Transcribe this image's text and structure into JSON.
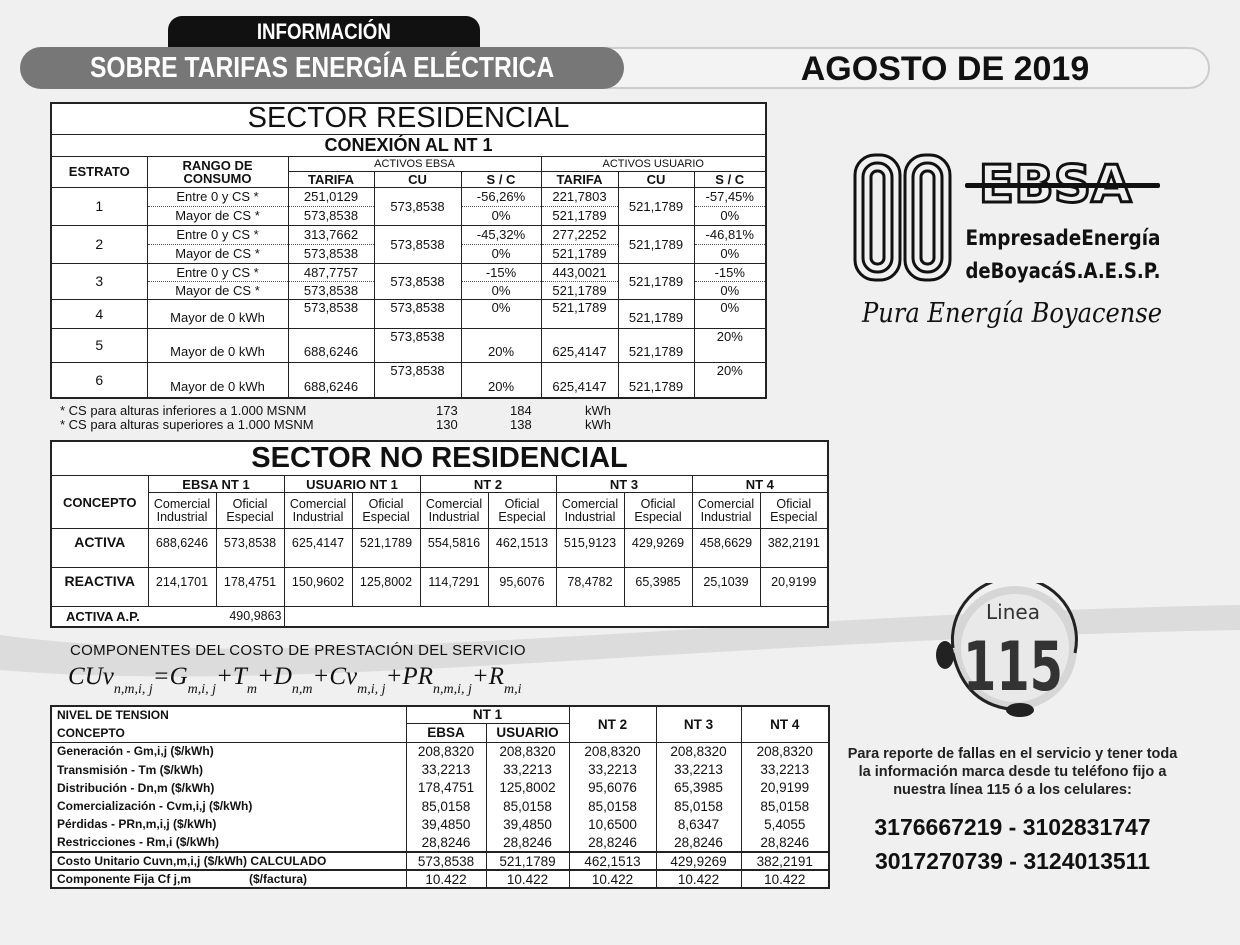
{
  "header": {
    "tab": "INFORMACIÓN",
    "title": "SOBRE TARIFAS ENERGÍA ELÉCTRICA",
    "date": "AGOSTO DE 2019"
  },
  "residencial": {
    "title": "SECTOR RESIDENCIAL",
    "subtitle": "CONEXIÓN AL  NT  1",
    "col_estrato": "ESTRATO",
    "col_rango": "RANGO DE CONSUMO",
    "group_ebsa": "ACTIVOS EBSA",
    "group_usuario": "ACTIVOS USUARIO",
    "sub_headers": [
      "TARIFA",
      "CU",
      "S / C",
      "TARIFA",
      "CU",
      "S / C"
    ],
    "rows": [
      {
        "estrato": "1",
        "lines": [
          [
            "Entre 0  y  CS *",
            "251,0129",
            "-56,26%",
            "221,7803",
            "-57,45%"
          ],
          [
            "Mayor de  CS *",
            "573,8538",
            "0%",
            "521,1789",
            "0%"
          ]
        ],
        "cu_ebsa": "573,8538",
        "cu_usuario": "521,1789"
      },
      {
        "estrato": "2",
        "lines": [
          [
            "Entre 0  y  CS *",
            "313,7662",
            "-45,32%",
            "277,2252",
            "-46,81%"
          ],
          [
            "Mayor de  CS *",
            "573,8538",
            "0%",
            "521,1789",
            "0%"
          ]
        ],
        "cu_ebsa": "573,8538",
        "cu_usuario": "521,1789"
      },
      {
        "estrato": "3",
        "lines": [
          [
            "Entre 0  y  CS *",
            "487,7757",
            "-15%",
            "443,0021",
            "-15%"
          ],
          [
            "Mayor de  CS *",
            "573,8538",
            "0%",
            "521,1789",
            "0%"
          ]
        ],
        "cu_ebsa": "573,8538",
        "cu_usuario": "521,1789"
      },
      {
        "estrato": "4",
        "lines": [
          [
            "Mayor de 0 kWh",
            "573,8538",
            "0%",
            "521,1789",
            "0%"
          ]
        ],
        "cu_ebsa": "573,8538",
        "cu_usuario": "521,1789"
      },
      {
        "estrato": "5",
        "lines": [
          [
            "Mayor de 0 kWh",
            "688,6246",
            "20%",
            "625,4147",
            "20%"
          ]
        ],
        "cu_ebsa": "573,8538",
        "cu_usuario": "521,1789"
      },
      {
        "estrato": "6",
        "lines": [
          [
            "Mayor de 0 kWh",
            "688,6246",
            "20%",
            "625,4147",
            "20%"
          ]
        ],
        "cu_ebsa": "573,8538",
        "cu_usuario": "521,1789"
      }
    ],
    "notes": [
      {
        "text": "* CS para alturas inferiores  a 1.000 MSNM",
        "v1": "173",
        "v2": "184",
        "unit": "kWh"
      },
      {
        "text": "* CS para alturas superiores a 1.000 MSNM",
        "v1": "130",
        "v2": "138",
        "unit": "kWh"
      }
    ]
  },
  "no_residencial": {
    "title": "SECTOR NO RESIDENCIAL",
    "col_concepto": "CONCEPTO",
    "groups": [
      "EBSA NT 1",
      "USUARIO NT 1",
      "NT  2",
      "NT  3",
      "NT  4"
    ],
    "sub": [
      "Comercial Industrial",
      "Oficial Especial"
    ],
    "rows": [
      {
        "label": "ACTIVA",
        "values": [
          "688,6246",
          "573,8538",
          "625,4147",
          "521,1789",
          "554,5816",
          "462,1513",
          "515,9123",
          "429,9269",
          "458,6629",
          "382,2191"
        ]
      },
      {
        "label": "REACTIVA",
        "values": [
          "214,1701",
          "178,4751",
          "150,9602",
          "125,8002",
          "114,7291",
          "95,6076",
          "78,4782",
          "65,3985",
          "25,1039",
          "20,9199"
        ]
      }
    ],
    "ap_label": "ACTIVA A.P.",
    "ap_value": "490,9863"
  },
  "componentes": {
    "title": "COMPONENTES DEL COSTO DE PRESTACIÓN DEL SERVICIO",
    "formula": {
      "lhs": "CUv",
      "lhs_sub": "n,m,i, j",
      "terms": [
        [
          "=G",
          "m,i, j"
        ],
        [
          "+T",
          "m"
        ],
        [
          "+D",
          "n,m"
        ],
        [
          "+Cv",
          "m,i, j"
        ],
        [
          "+PR",
          "n,m,i, j"
        ],
        [
          "+R",
          "m,i"
        ]
      ]
    },
    "h_nivel": "NIVEL DE TENSION",
    "h_concepto": "CONCEPTO",
    "h_nt1": "NT 1",
    "h_ebsa": "EBSA",
    "h_usuario": "USUARIO",
    "h_nt2": "NT 2",
    "h_nt3": "NT 3",
    "h_nt4": "NT 4",
    "rows": [
      {
        "label": "Generación - Gm,i,j ($/kWh)",
        "values": [
          "208,8320",
          "208,8320",
          "208,8320",
          "208,8320",
          "208,8320"
        ]
      },
      {
        "label": "Transmisión - Tm ($/kWh)",
        "values": [
          "33,2213",
          "33,2213",
          "33,2213",
          "33,2213",
          "33,2213"
        ]
      },
      {
        "label": "Distribución - Dn,m ($/kWh)",
        "values": [
          "178,4751",
          "125,8002",
          "95,6076",
          "65,3985",
          "20,9199"
        ]
      },
      {
        "label": "Comercialización - Cvm,i,j ($/kWh)",
        "values": [
          "85,0158",
          "85,0158",
          "85,0158",
          "85,0158",
          "85,0158"
        ]
      },
      {
        "label": "Pérdidas - PRn,m,i,j ($/kWh)",
        "values": [
          "39,4850",
          "39,4850",
          "10,6500",
          "8,6347",
          "5,4055"
        ]
      },
      {
        "label": "Restricciones - Rm,i ($/kWh)",
        "values": [
          "28,8246",
          "28,8246",
          "28,8246",
          "28,8246",
          "28,8246"
        ]
      }
    ],
    "total": {
      "label": "Costo Unitario     Cuvn,m,i,j  ($/kWh) CALCULADO",
      "values": [
        "573,8538",
        "521,1789",
        "462,1513",
        "429,9269",
        "382,2191"
      ]
    },
    "fija": {
      "label": "Componente Fija Cf j,m",
      "unit": "($/factura)",
      "values": [
        "10.422",
        "10.422",
        "10.422",
        "10.422",
        "10.422"
      ]
    }
  },
  "logo": {
    "acronym": "EBSA",
    "line1": "EmpresadeEnergía",
    "line2": "deBoyacáS.A.E.S.P.",
    "slogan": "Pura Energía Boyacense"
  },
  "linea": {
    "label": "Linea",
    "number": "115"
  },
  "report_text": "Para reporte de fallas en el servicio y tener toda la información marca desde tu teléfono fijo a nuestra línea 115 ó a los celulares:",
  "phones": [
    "3176667219 - 3102831747",
    "3017270739 - 3124013511"
  ]
}
